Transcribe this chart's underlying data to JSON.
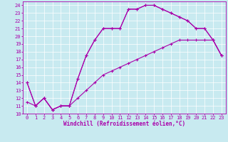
{
  "bg_color": "#c8eaf0",
  "line_color": "#aa00aa",
  "grid_color": "#ffffff",
  "xlabel": "Windchill (Refroidissement éolien,°C)",
  "xlim": [
    -0.5,
    23.5
  ],
  "ylim": [
    10,
    24.5
  ],
  "xticks": [
    0,
    1,
    2,
    3,
    4,
    5,
    6,
    7,
    8,
    9,
    10,
    11,
    12,
    13,
    14,
    15,
    16,
    17,
    18,
    19,
    20,
    21,
    22,
    23
  ],
  "yticks": [
    10,
    11,
    12,
    13,
    14,
    15,
    16,
    17,
    18,
    19,
    20,
    21,
    22,
    23,
    24
  ],
  "curve1": {
    "x": [
      0,
      1,
      2,
      3,
      4,
      5,
      6,
      7,
      8,
      9,
      10,
      11,
      12,
      13,
      14,
      15,
      16,
      17,
      18,
      19,
      20,
      21,
      22,
      23
    ],
    "y": [
      14,
      11,
      12,
      10.5,
      11,
      11,
      14.5,
      17.5,
      19.5,
      21,
      21,
      21,
      23.5,
      23.5,
      24,
      24,
      23.5,
      23,
      22.5,
      22,
      21,
      21,
      19.5,
      17.5
    ]
  },
  "curve2": {
    "x": [
      0,
      1,
      2,
      3,
      4,
      5,
      6,
      7,
      8,
      9,
      10,
      11,
      12,
      13,
      14,
      15,
      16,
      17,
      18,
      19,
      20,
      21,
      22,
      23
    ],
    "y": [
      11.5,
      11,
      12,
      10.5,
      11,
      11,
      12,
      13,
      14,
      15,
      15.5,
      16,
      16.5,
      17,
      17.5,
      18,
      18.5,
      19,
      19.5,
      19.5,
      19.5,
      19.5,
      19.5,
      17.5
    ]
  },
  "curve3": {
    "x": [
      0,
      1,
      2,
      3,
      4,
      5,
      6,
      7,
      8,
      9,
      10,
      11,
      12,
      13,
      14,
      15,
      16,
      17,
      18,
      19,
      20,
      21,
      22,
      23
    ],
    "y": [
      14,
      11,
      12,
      10.5,
      11,
      11,
      14.5,
      17.5,
      19.5,
      21,
      21,
      21,
      23.5,
      23.5,
      24,
      24,
      23.5,
      23,
      22.5,
      22,
      21,
      21,
      19.5,
      17.5
    ]
  },
  "tick_fontsize": 5.0,
  "xlabel_fontsize": 5.5,
  "lw": 0.8,
  "ms": 3.0
}
